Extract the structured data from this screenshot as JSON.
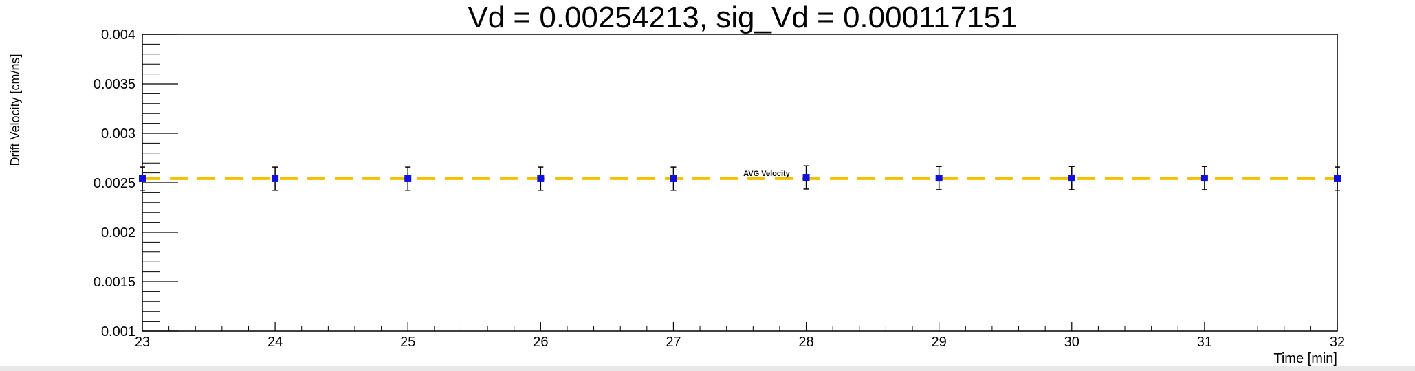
{
  "chart_data": {
    "type": "scatter",
    "title": "Vd = 0.00254213, sig_Vd = 0.000117151",
    "xlabel": "Time [min]",
    "ylabel": "Drift Velocity [cm/ns]",
    "xlim": [
      23,
      32
    ],
    "ylim": [
      0.001,
      0.004
    ],
    "x_ticks": [
      23,
      24,
      25,
      26,
      27,
      28,
      29,
      30,
      31,
      32
    ],
    "y_ticks": [
      0.001,
      0.0015,
      0.002,
      0.0025,
      0.003,
      0.0035,
      0.004
    ],
    "x_tick_labels": [
      "23",
      "24",
      "25",
      "26",
      "27",
      "28",
      "29",
      "30",
      "31",
      "32"
    ],
    "y_tick_labels": [
      "0.001",
      "0.0015",
      "0.002",
      "0.0025",
      "0.003",
      "0.0035",
      "0.004"
    ],
    "grid": false,
    "series": [
      {
        "x": [
          23,
          24,
          25,
          26,
          27,
          28,
          29,
          30,
          31,
          32
        ],
        "y": [
          0.002542,
          0.002542,
          0.002542,
          0.002542,
          0.002542,
          0.002555,
          0.002548,
          0.002548,
          0.002548,
          0.002542
        ],
        "yerr": [
          0.000117,
          0.000117,
          0.000117,
          0.000117,
          0.000117,
          0.000117,
          0.000117,
          0.000117,
          0.000117,
          0.000117
        ],
        "color": "#1010e0"
      }
    ],
    "reference_line": {
      "label": "AVG Velocity",
      "y": 0.00254213,
      "color": "#f5c000",
      "style": "dashed"
    }
  }
}
